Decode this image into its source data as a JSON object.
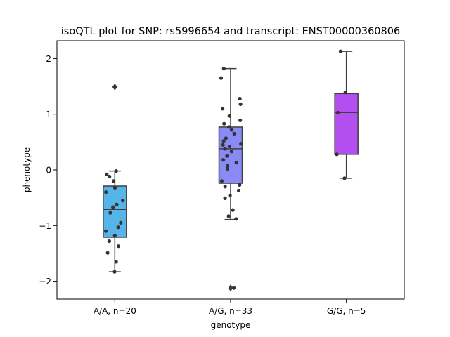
{
  "chart_data": {
    "type": "box",
    "title": "isoQTL plot for SNP: rs5996654 and transcript: ENST00000360806",
    "xlabel": "genotype",
    "ylabel": "phenotype",
    "ylim": [
      -2.32,
      2.32
    ],
    "yticks": [
      -2,
      -1,
      0,
      1,
      2
    ],
    "ytick_labels": [
      "−2",
      "−1",
      "0",
      "1",
      "2"
    ],
    "grid": false,
    "categories": [
      "A/A, n=20",
      "A/G, n=33",
      "G/G, n=5"
    ],
    "boxes": [
      {
        "category": "A/A, n=20",
        "color": "#56b4e9",
        "q1": -1.21,
        "median": -0.71,
        "q3": -0.29,
        "whisker_low": -1.83,
        "whisker_high": -0.02,
        "outliers": [
          1.49
        ],
        "points": [
          1.49,
          -0.02,
          -0.08,
          -0.12,
          -0.2,
          -0.32,
          -0.4,
          -0.55,
          -0.62,
          -0.67,
          -0.77,
          -0.95,
          -1.03,
          -1.1,
          -1.18,
          -1.28,
          -1.37,
          -1.49,
          -1.65,
          -1.83
        ]
      },
      {
        "category": "A/G, n=33",
        "color": "#8a8af6",
        "q1": -0.24,
        "median": 0.38,
        "q3": 0.77,
        "whisker_low": -0.89,
        "whisker_high": 1.82,
        "outliers": [
          -2.12
        ],
        "points": [
          1.82,
          1.65,
          1.28,
          1.18,
          1.1,
          0.97,
          0.89,
          0.83,
          0.77,
          0.72,
          0.65,
          0.57,
          0.52,
          0.47,
          0.42,
          0.38,
          0.33,
          0.25,
          0.18,
          0.13,
          0.07,
          0.02,
          -0.2,
          -0.27,
          -0.3,
          -0.37,
          -0.46,
          -0.51,
          -0.72,
          -0.83,
          -0.88,
          -2.12,
          0.45
        ]
      },
      {
        "category": "G/G, n=5",
        "color": "#b34ef0",
        "q1": 0.28,
        "median": 1.03,
        "q3": 1.37,
        "whisker_low": -0.15,
        "whisker_high": 2.13,
        "outliers": [],
        "points": [
          2.13,
          1.39,
          1.03,
          0.28,
          -0.15
        ]
      }
    ]
  }
}
